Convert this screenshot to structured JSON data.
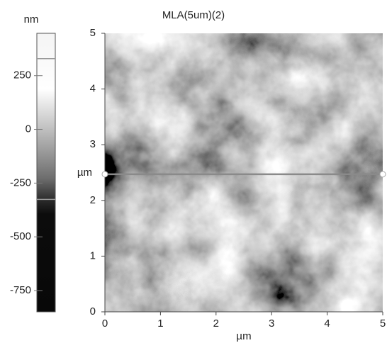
{
  "chart_data": {
    "type": "image",
    "title": "MLA(5um)(2)",
    "x_label": "µm",
    "y_label": "µm",
    "xlim": [
      0,
      5
    ],
    "xticks": [
      0,
      1,
      2,
      3,
      4,
      5
    ],
    "ylim": [
      0,
      5
    ],
    "yticks": [
      0,
      1,
      2,
      3,
      4,
      5
    ],
    "cursor_y": 2.47,
    "colorbar": {
      "label": "nm",
      "lim": [
        -849,
        447
      ],
      "ticks": [
        250,
        0,
        -250,
        -500,
        -750
      ],
      "markers": [
        329,
        -326
      ]
    }
  }
}
